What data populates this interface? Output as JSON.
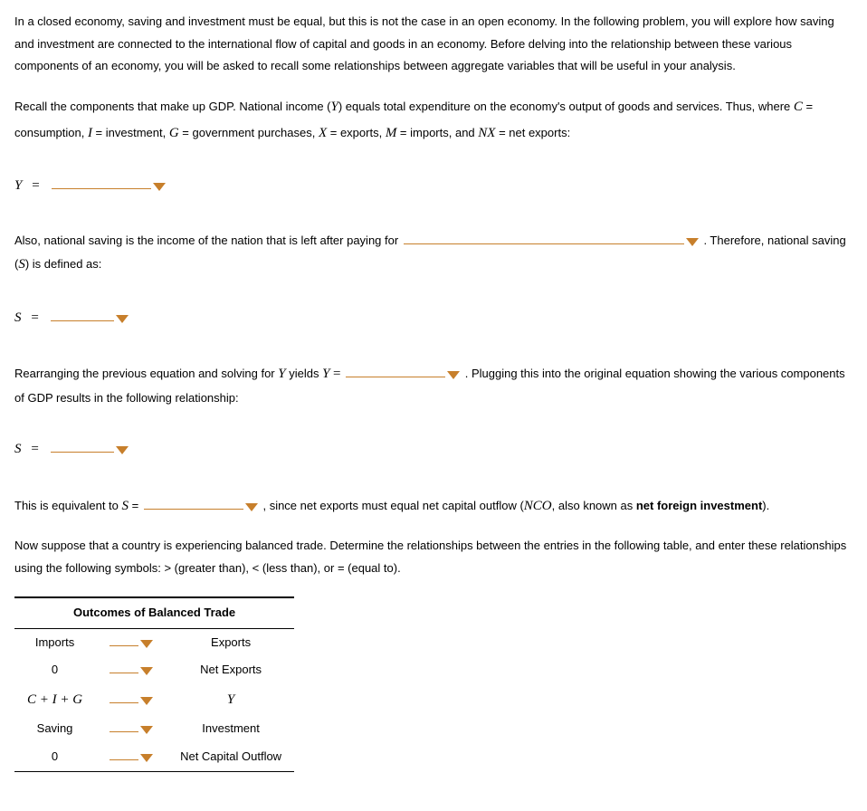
{
  "para1": "In a closed economy, saving and investment must be equal, but this is not the case in an open economy. In the following problem, you will explore how saving and investment are connected to the international flow of capital and goods in an economy. Before delving into the relationship between these various components of an economy, you will be asked to recall some relationships between aggregate variables that will be useful in your analysis.",
  "para2_a": "Recall the components that make up GDP. National income (",
  "Y": "Y",
  "para2_b": ") equals total expenditure on the economy's output of goods and services. Thus, where ",
  "C": "C",
  "eqtxt_consumption": " = consumption, ",
  "I": "I",
  "eqtxt_investment": " = investment, ",
  "G": "G",
  "eqtxt_gov": " = government purchases, ",
  "X": "X",
  "eqtxt_exports": " = exports, ",
  "M": "M",
  "eqtxt_imports": " = imports, and ",
  "NX": "NX",
  "eqtxt_nx": " = net exports:",
  "eq1_lhs": "Y",
  "eqsign": "=",
  "para3_a": "Also, national saving is the income of the nation that is left after paying for ",
  "para3_b": ". Therefore, national saving (",
  "S": "S",
  "para3_c": ") is defined as:",
  "eq2_lhs": "S",
  "para4_a": "Rearranging the previous equation and solving for ",
  "para4_b": " yields ",
  "para4_c": ". Plugging this into the original equation showing the various components of GDP results in the following relationship:",
  "eq3_lhs": "S",
  "para5_a": "This is equivalent to ",
  "para5_b": " = ",
  "para5_c": ", since net exports must equal net capital outflow (",
  "NCO": "NCO",
  "para5_d": ", also known as ",
  "nfi": "net foreign investment",
  "para5_e": ").",
  "para6": "Now suppose that a country is experiencing balanced trade. Determine the relationships between the entries in the following table, and enter these relationships using the following symbols: > (greater than), < (less than), or = (equal to).",
  "table": {
    "header": "Outcomes of Balanced Trade",
    "rows": [
      {
        "left": "Imports",
        "right": "Exports"
      },
      {
        "left": "0",
        "right": "Net Exports"
      },
      {
        "left_math": "C + I + G",
        "right_math": "Y"
      },
      {
        "left": "Saving",
        "right": "Investment"
      },
      {
        "left": "0",
        "right": "Net Capital Outflow"
      }
    ]
  },
  "colors": {
    "accent": "#c77f2b"
  }
}
